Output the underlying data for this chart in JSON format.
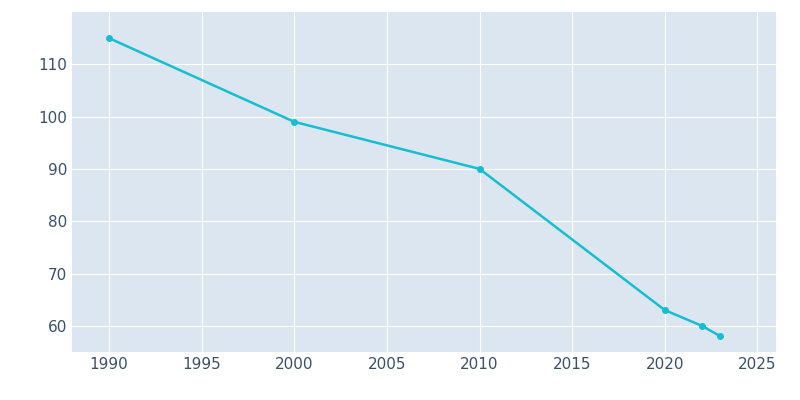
{
  "years": [
    1990,
    2000,
    2010,
    2020,
    2022,
    2023
  ],
  "population": [
    115,
    99,
    90,
    63,
    60,
    58
  ],
  "line_color": "#17becf",
  "marker": "o",
  "marker_size": 4,
  "line_width": 1.8,
  "axes_background_color": "#dce6f0",
  "grid_color": "#ffffff",
  "tick_color": "#3d5068",
  "xlim": [
    1988,
    2026
  ],
  "ylim": [
    55,
    120
  ],
  "xticks": [
    1990,
    1995,
    2000,
    2005,
    2010,
    2015,
    2020,
    2025
  ],
  "yticks": [
    60,
    70,
    80,
    90,
    100,
    110
  ],
  "tick_fontsize": 11,
  "figure_facecolor": "#ffffff"
}
